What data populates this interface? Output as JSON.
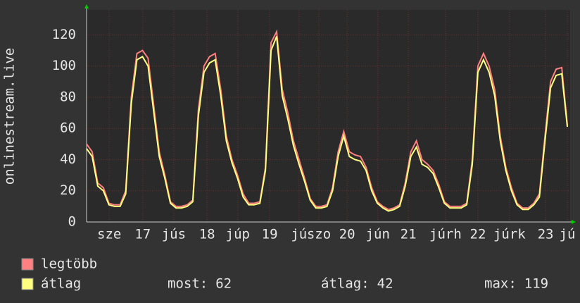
{
  "chart_data": {
    "type": "line",
    "y_label": "onlinestream.live",
    "x": [
      0,
      2,
      4,
      6,
      8,
      10,
      12,
      14,
      16,
      18,
      20,
      22,
      24,
      26,
      28,
      30,
      32,
      34,
      36,
      38,
      40,
      42,
      44,
      46,
      48,
      50,
      52,
      54,
      56,
      58,
      60,
      62,
      64,
      66,
      68,
      70,
      72,
      74,
      76,
      78,
      80,
      82,
      84,
      86,
      88,
      90,
      92,
      94,
      96,
      98,
      100,
      102,
      104,
      106,
      108,
      110,
      112,
      114,
      116,
      118,
      120,
      122,
      124,
      126,
      128,
      130,
      132,
      134,
      136,
      138,
      140,
      142,
      144,
      146,
      148,
      150,
      152,
      154,
      156,
      158,
      160,
      162,
      164,
      166,
      168,
      170,
      172
    ],
    "series": [
      {
        "name": "legtöbb",
        "color": "#ff8080",
        "values": [
          50,
          45,
          25,
          22,
          12,
          11,
          11,
          20,
          80,
          108,
          110,
          105,
          75,
          45,
          30,
          13,
          10,
          10,
          11,
          14,
          72,
          100,
          106,
          108,
          85,
          55,
          40,
          30,
          18,
          12,
          12,
          13,
          35,
          115,
          122,
          85,
          70,
          52,
          40,
          28,
          15,
          10,
          10,
          11,
          22,
          45,
          58,
          45,
          43,
          42,
          35,
          22,
          13,
          10,
          8,
          9,
          11,
          25,
          45,
          52,
          40,
          37,
          33,
          24,
          13,
          10,
          10,
          10,
          12,
          40,
          100,
          108,
          100,
          85,
          55,
          35,
          22,
          12,
          9,
          9,
          12,
          18,
          55,
          90,
          98,
          99,
          62
        ]
      },
      {
        "name": "átlag",
        "color": "#ffff80",
        "values": [
          47,
          42,
          23,
          20,
          11,
          10,
          10,
          18,
          76,
          104,
          106,
          100,
          71,
          42,
          28,
          12,
          9,
          9,
          10,
          13,
          68,
          96,
          102,
          104,
          81,
          52,
          38,
          28,
          16,
          11,
          11,
          12,
          33,
          110,
          119,
          81,
          66,
          49,
          37,
          26,
          14,
          9,
          9,
          10,
          20,
          42,
          55,
          42,
          40,
          39,
          33,
          20,
          12,
          9,
          7,
          8,
          10,
          23,
          42,
          48,
          37,
          35,
          31,
          22,
          12,
          9,
          9,
          9,
          11,
          37,
          96,
          104,
          96,
          81,
          52,
          33,
          20,
          11,
          8,
          8,
          11,
          16,
          52,
          86,
          94,
          95,
          61
        ]
      }
    ],
    "xlim": [
      0,
      173
    ],
    "ylim": [
      0,
      136
    ],
    "yticks": [
      0,
      20,
      40,
      60,
      80,
      100,
      120
    ],
    "xticks": [
      {
        "value": 8.1,
        "label": "sze"
      },
      {
        "value": 20.1,
        "label": "17"
      },
      {
        "value": 31.2,
        "label": "jús"
      },
      {
        "value": 43.1,
        "label": "18"
      },
      {
        "value": 54.1,
        "label": "júp"
      },
      {
        "value": 65.5,
        "label": "19"
      },
      {
        "value": 76.0,
        "label": "jú"
      },
      {
        "value": 83.1,
        "label": "szo"
      },
      {
        "value": 93.2,
        "label": "20"
      },
      {
        "value": 104.2,
        "label": "jún"
      },
      {
        "value": 115.1,
        "label": "21"
      },
      {
        "value": 128.4,
        "label": "júrh"
      },
      {
        "value": 140.0,
        "label": "22"
      },
      {
        "value": 151.3,
        "label": "júrk"
      },
      {
        "value": 164.2,
        "label": "23"
      },
      {
        "value": 172,
        "label": "jú"
      }
    ],
    "grid": true,
    "stats": [
      {
        "label": "most:",
        "value": 62
      },
      {
        "label": "átlag:",
        "value": 42
      },
      {
        "label": "max:",
        "value": 119
      }
    ]
  }
}
